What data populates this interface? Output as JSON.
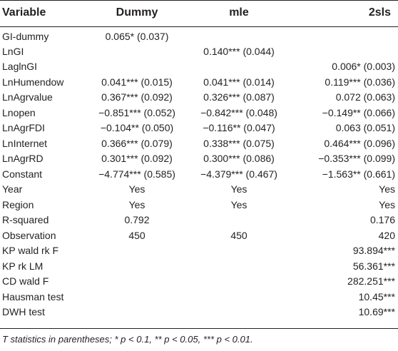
{
  "table": {
    "headers": [
      "Variable",
      "Dummy",
      "mle",
      "2sls"
    ],
    "rows": [
      [
        "GI-dummy",
        "0.065* (0.037)",
        "",
        ""
      ],
      [
        "LnGI",
        "",
        "0.140*** (0.044)",
        ""
      ],
      [
        "LaglnGI",
        "",
        "",
        "0.006* (0.003)"
      ],
      [
        "LnHumendow",
        "0.041*** (0.015)",
        "0.041*** (0.014)",
        "0.119*** (0.036)"
      ],
      [
        "LnAgrvalue",
        "0.367*** (0.092)",
        "0.326*** (0.087)",
        "0.072 (0.063)"
      ],
      [
        "Lnopen",
        "−0.851*** (0.052)",
        "−0.842*** (0.048)",
        "−0.149** (0.066)"
      ],
      [
        "LnAgrFDI",
        "−0.104** (0.050)",
        "−0.116** (0.047)",
        "0.063 (0.051)"
      ],
      [
        "LnInternet",
        "0.366*** (0.079)",
        "0.338*** (0.075)",
        "0.464*** (0.096)"
      ],
      [
        "LnAgrRD",
        "0.301*** (0.092)",
        "0.300*** (0.086)",
        "−0.353*** (0.099)"
      ],
      [
        "Constant",
        "−4.774*** (0.585)",
        "−4.379*** (0.467)",
        "−1.563** (0.661)"
      ],
      [
        "Year",
        "Yes",
        "Yes",
        "Yes"
      ],
      [
        "Region",
        "Yes",
        "Yes",
        "Yes"
      ],
      [
        "R-squared",
        "0.792",
        "",
        "0.176"
      ],
      [
        "Observation",
        "450",
        "450",
        "420"
      ],
      [
        "KP wald rk F",
        "",
        "",
        "93.894***"
      ],
      [
        "KP rk LM",
        "",
        "",
        "56.361***"
      ],
      [
        "CD wald F",
        "",
        "",
        "282.251***"
      ],
      [
        "Hausman test",
        "",
        "",
        "10.45***"
      ],
      [
        "DWH test",
        "",
        "",
        "10.69***"
      ]
    ]
  },
  "footnote": "T statistics in parentheses; * p < 0.1, ** p < 0.05, *** p < 0.01."
}
